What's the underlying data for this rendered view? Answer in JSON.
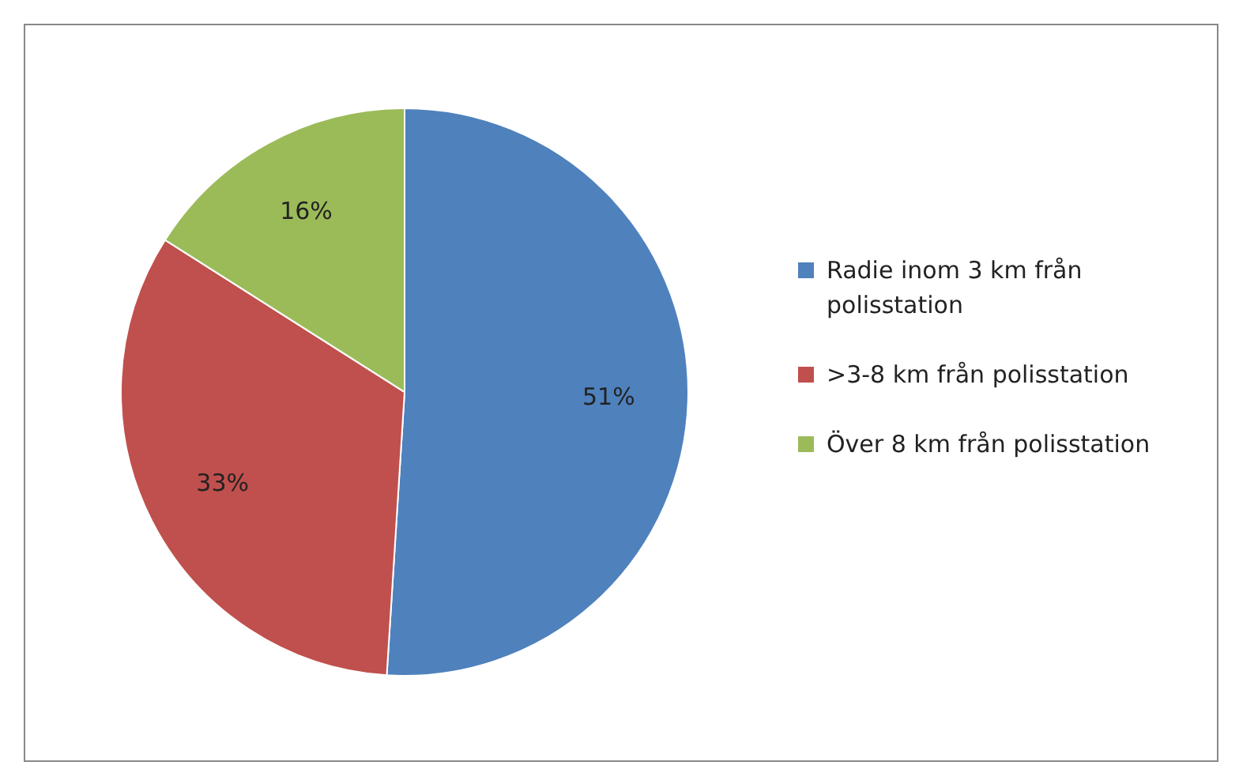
{
  "chart_data": {
    "type": "pie",
    "categories": [
      "Radie inom 3 km från polisstation",
      ">3-8 km från polisstation",
      "Över 8 km från polisstation"
    ],
    "values": [
      51,
      33,
      16
    ],
    "colors": [
      "#4f81bd",
      "#c0504d",
      "#9bbb59"
    ],
    "value_labels": [
      "51%",
      "33%",
      "16%"
    ],
    "legend": "right"
  }
}
